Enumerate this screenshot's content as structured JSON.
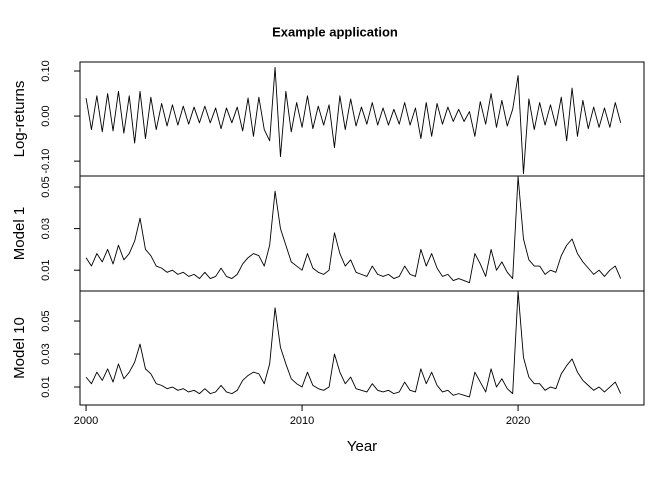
{
  "chart_data": [
    {
      "type": "line",
      "title": "Example application",
      "ylabel": "Log-returns",
      "xlim": [
        1999.72,
        2025.83
      ],
      "ylim": [
        -0.133,
        0.12
      ],
      "yticks": [
        {
          "value": -0.1,
          "label": "-0.10"
        },
        {
          "value": 0,
          "label": "0.00"
        },
        {
          "value": 0.1,
          "label": "0.10"
        }
      ],
      "x": [
        2000,
        2000.25,
        2000.5,
        2000.75,
        2001,
        2001.25,
        2001.5,
        2001.75,
        2002,
        2002.25,
        2002.5,
        2002.75,
        2003,
        2003.25,
        2003.5,
        2003.75,
        2004,
        2004.25,
        2004.5,
        2004.75,
        2005,
        2005.25,
        2005.5,
        2005.75,
        2006,
        2006.25,
        2006.5,
        2006.75,
        2007,
        2007.25,
        2007.5,
        2007.75,
        2008,
        2008.25,
        2008.5,
        2008.75,
        2009,
        2009.25,
        2009.5,
        2009.75,
        2010,
        2010.25,
        2010.5,
        2010.75,
        2011,
        2011.25,
        2011.5,
        2011.75,
        2012,
        2012.25,
        2012.5,
        2012.75,
        2013,
        2013.25,
        2013.5,
        2013.75,
        2014,
        2014.25,
        2014.5,
        2014.75,
        2015,
        2015.25,
        2015.5,
        2015.75,
        2016,
        2016.25,
        2016.5,
        2016.75,
        2017,
        2017.25,
        2017.5,
        2017.75,
        2018,
        2018.25,
        2018.5,
        2018.75,
        2019,
        2019.25,
        2019.5,
        2019.75,
        2020,
        2020.25,
        2020.5,
        2020.75,
        2021,
        2021.25,
        2021.5,
        2021.75,
        2022,
        2022.25,
        2022.5,
        2022.75,
        2023,
        2023.25,
        2023.5,
        2023.75,
        2024,
        2024.25,
        2024.5,
        2024.75
      ],
      "series": [
        {
          "color": "#000000",
          "values": [
            0.04,
            -0.03,
            0.045,
            -0.035,
            0.05,
            -0.033,
            0.055,
            -0.038,
            0.045,
            -0.06,
            0.055,
            -0.05,
            0.042,
            -0.03,
            0.028,
            -0.022,
            0.025,
            -0.02,
            0.022,
            -0.018,
            0.02,
            -0.015,
            0.022,
            -0.015,
            0.018,
            -0.028,
            0.018,
            -0.015,
            0.02,
            -0.033,
            0.04,
            -0.045,
            0.042,
            -0.03,
            -0.055,
            0.108,
            -0.09,
            0.055,
            -0.035,
            0.03,
            -0.025,
            0.045,
            -0.028,
            0.022,
            -0.02,
            0.025,
            -0.07,
            0.045,
            -0.03,
            0.038,
            -0.022,
            0.02,
            -0.018,
            0.03,
            -0.02,
            0.018,
            -0.02,
            0.015,
            -0.018,
            0.03,
            -0.02,
            0.018,
            -0.05,
            0.03,
            -0.045,
            0.028,
            -0.018,
            0.02,
            -0.012,
            0.015,
            -0.012,
            0.01,
            -0.045,
            0.032,
            -0.018,
            0.05,
            -0.025,
            0.035,
            -0.022,
            0.015,
            0.09,
            -0.128,
            0.038,
            -0.03,
            0.03,
            -0.02,
            0.025,
            -0.022,
            0.042,
            -0.055,
            0.062,
            -0.045,
            0.035,
            -0.028,
            0.02,
            -0.025,
            0.018,
            -0.025,
            0.03,
            -0.015
          ]
        }
      ]
    },
    {
      "type": "line",
      "ylabel": "Model 1",
      "xlim": [
        1999.72,
        2025.83
      ],
      "ylim": [
        0,
        0.0553
      ],
      "yticks": [
        0.01,
        0.03,
        0.05
      ],
      "x": [
        2000,
        2000.25,
        2000.5,
        2000.75,
        2001,
        2001.25,
        2001.5,
        2001.75,
        2002,
        2002.25,
        2002.5,
        2002.75,
        2003,
        2003.25,
        2003.5,
        2003.75,
        2004,
        2004.25,
        2004.5,
        2004.75,
        2005,
        2005.25,
        2005.5,
        2005.75,
        2006,
        2006.25,
        2006.5,
        2006.75,
        2007,
        2007.25,
        2007.5,
        2007.75,
        2008,
        2008.25,
        2008.5,
        2008.75,
        2009,
        2009.25,
        2009.5,
        2009.75,
        2010,
        2010.25,
        2010.5,
        2010.75,
        2011,
        2011.25,
        2011.5,
        2011.75,
        2012,
        2012.25,
        2012.5,
        2012.75,
        2013,
        2013.25,
        2013.5,
        2013.75,
        2014,
        2014.25,
        2014.5,
        2014.75,
        2015,
        2015.25,
        2015.5,
        2015.75,
        2016,
        2016.25,
        2016.5,
        2016.75,
        2017,
        2017.25,
        2017.5,
        2017.75,
        2018,
        2018.25,
        2018.5,
        2018.75,
        2019,
        2019.25,
        2019.5,
        2019.75,
        2020,
        2020.25,
        2020.5,
        2020.75,
        2021,
        2021.25,
        2021.5,
        2021.75,
        2022,
        2022.25,
        2022.5,
        2022.75,
        2023,
        2023.25,
        2023.5,
        2023.75,
        2024,
        2024.25,
        2024.5,
        2024.75
      ],
      "series": [
        {
          "color": "#000000",
          "values": [
            0.016,
            0.012,
            0.018,
            0.014,
            0.02,
            0.013,
            0.022,
            0.015,
            0.018,
            0.024,
            0.035,
            0.02,
            0.017,
            0.012,
            0.011,
            0.009,
            0.01,
            0.008,
            0.009,
            0.007,
            0.008,
            0.006,
            0.009,
            0.006,
            0.007,
            0.011,
            0.007,
            0.006,
            0.008,
            0.013,
            0.016,
            0.018,
            0.017,
            0.012,
            0.022,
            0.048,
            0.03,
            0.022,
            0.014,
            0.012,
            0.01,
            0.018,
            0.011,
            0.009,
            0.008,
            0.01,
            0.028,
            0.018,
            0.012,
            0.015,
            0.009,
            0.008,
            0.007,
            0.012,
            0.008,
            0.007,
            0.008,
            0.006,
            0.007,
            0.012,
            0.008,
            0.007,
            0.02,
            0.012,
            0.018,
            0.011,
            0.007,
            0.008,
            0.005,
            0.006,
            0.005,
            0.004,
            0.018,
            0.013,
            0.007,
            0.02,
            0.01,
            0.014,
            0.009,
            0.006,
            0.055,
            0.025,
            0.015,
            0.012,
            0.012,
            0.008,
            0.01,
            0.009,
            0.017,
            0.022,
            0.025,
            0.018,
            0.014,
            0.011,
            0.008,
            0.01,
            0.007,
            0.01,
            0.012,
            0.006
          ]
        }
      ]
    },
    {
      "type": "line",
      "ylabel": "Model 10",
      "xlabel": "Year",
      "xlim": [
        1999.72,
        2025.83
      ],
      "ylim": [
        -0.0009,
        0.0682
      ],
      "xticks": [
        2000,
        2010,
        2020
      ],
      "yticks": [
        0.01,
        0.03,
        0.05
      ],
      "x": [
        2000,
        2000.25,
        2000.5,
        2000.75,
        2001,
        2001.25,
        2001.5,
        2001.75,
        2002,
        2002.25,
        2002.5,
        2002.75,
        2003,
        2003.25,
        2003.5,
        2003.75,
        2004,
        2004.25,
        2004.5,
        2004.75,
        2005,
        2005.25,
        2005.5,
        2005.75,
        2006,
        2006.25,
        2006.5,
        2006.75,
        2007,
        2007.25,
        2007.5,
        2007.75,
        2008,
        2008.25,
        2008.5,
        2008.75,
        2009,
        2009.25,
        2009.5,
        2009.75,
        2010,
        2010.25,
        2010.5,
        2010.75,
        2011,
        2011.25,
        2011.5,
        2011.75,
        2012,
        2012.25,
        2012.5,
        2012.75,
        2013,
        2013.25,
        2013.5,
        2013.75,
        2014,
        2014.25,
        2014.5,
        2014.75,
        2015,
        2015.25,
        2015.5,
        2015.75,
        2016,
        2016.25,
        2016.5,
        2016.75,
        2017,
        2017.25,
        2017.5,
        2017.75,
        2018,
        2018.25,
        2018.5,
        2018.75,
        2019,
        2019.25,
        2019.5,
        2019.75,
        2020,
        2020.25,
        2020.5,
        2020.75,
        2021,
        2021.25,
        2021.5,
        2021.75,
        2022,
        2022.25,
        2022.5,
        2022.75,
        2023,
        2023.25,
        2023.5,
        2023.75,
        2024,
        2024.25,
        2024.5,
        2024.75
      ],
      "series": [
        {
          "color": "#000000",
          "values": [
            0.016,
            0.012,
            0.019,
            0.014,
            0.021,
            0.013,
            0.024,
            0.015,
            0.019,
            0.025,
            0.036,
            0.021,
            0.018,
            0.012,
            0.011,
            0.009,
            0.01,
            0.008,
            0.009,
            0.007,
            0.008,
            0.006,
            0.009,
            0.006,
            0.007,
            0.011,
            0.007,
            0.006,
            0.008,
            0.014,
            0.017,
            0.019,
            0.018,
            0.012,
            0.024,
            0.058,
            0.034,
            0.024,
            0.015,
            0.012,
            0.01,
            0.019,
            0.011,
            0.009,
            0.008,
            0.01,
            0.03,
            0.019,
            0.012,
            0.016,
            0.009,
            0.008,
            0.007,
            0.012,
            0.008,
            0.007,
            0.008,
            0.006,
            0.007,
            0.013,
            0.008,
            0.007,
            0.021,
            0.012,
            0.019,
            0.011,
            0.007,
            0.008,
            0.005,
            0.006,
            0.005,
            0.004,
            0.019,
            0.013,
            0.007,
            0.021,
            0.01,
            0.015,
            0.009,
            0.006,
            0.068,
            0.028,
            0.016,
            0.012,
            0.012,
            0.008,
            0.01,
            0.009,
            0.018,
            0.023,
            0.027,
            0.019,
            0.014,
            0.011,
            0.008,
            0.01,
            0.007,
            0.01,
            0.013,
            0.006
          ]
        }
      ]
    }
  ]
}
